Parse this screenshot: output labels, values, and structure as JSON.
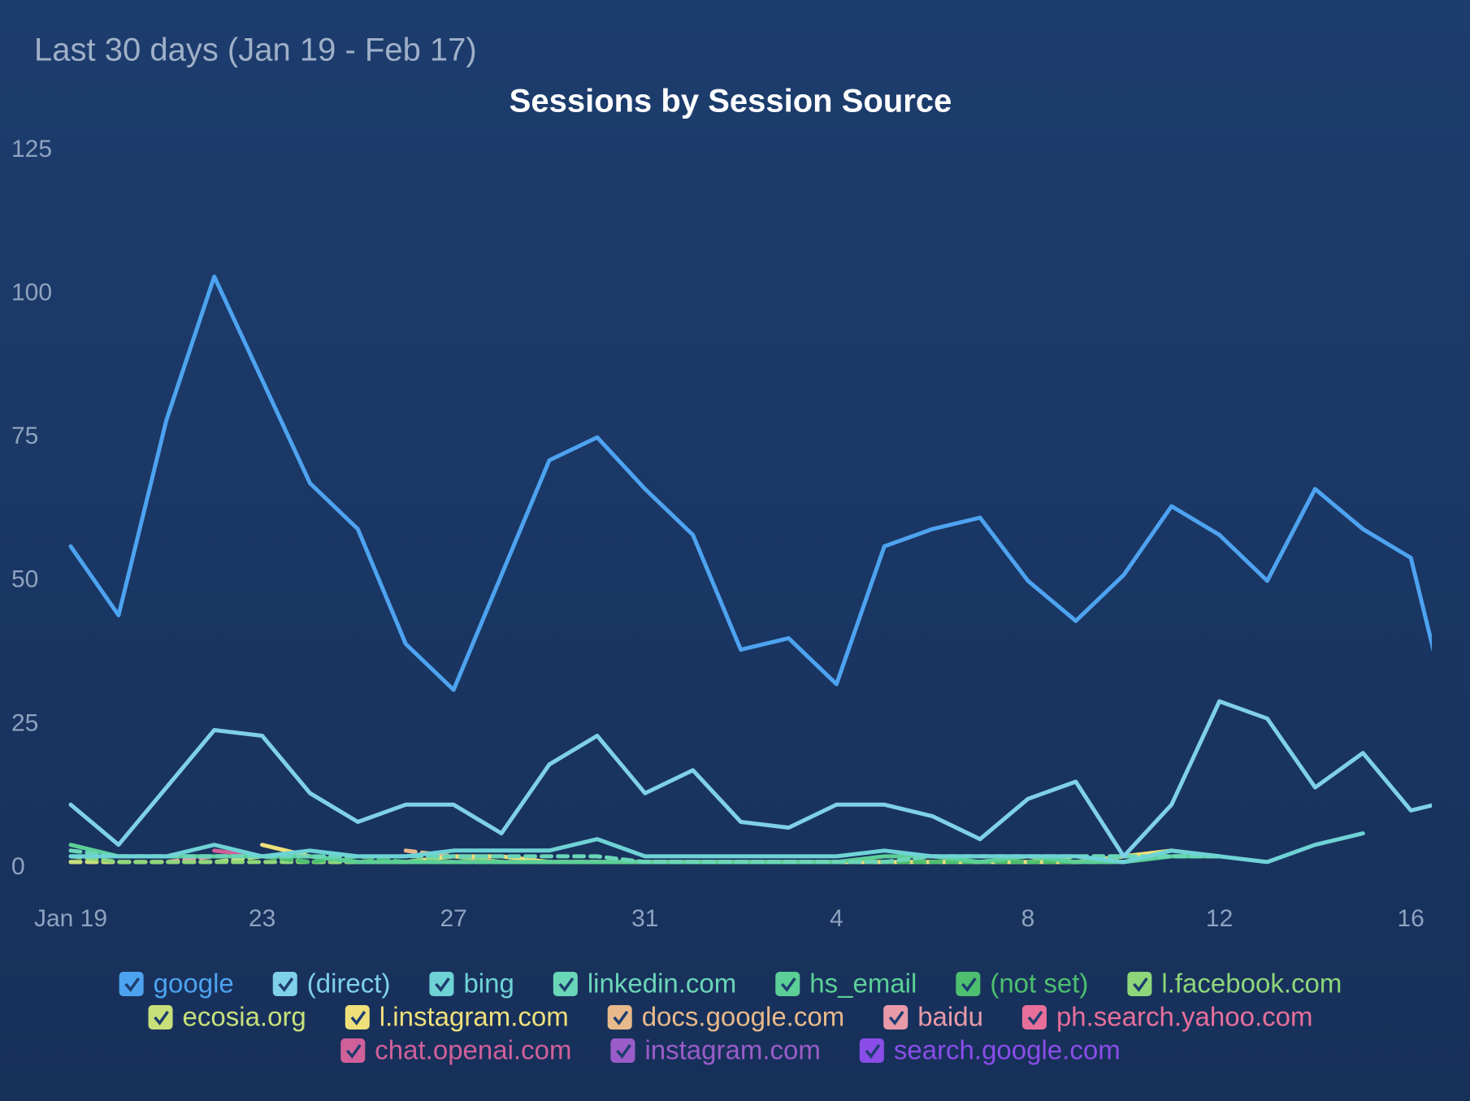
{
  "chart_data": {
    "type": "line",
    "subtitle": "Last 30 days (Jan 19 - Feb 17)",
    "title": "Sessions by Session Source",
    "categories": [
      "Jan 19",
      null,
      null,
      null,
      "23",
      null,
      null,
      null,
      "27",
      null,
      null,
      null,
      "31",
      null,
      null,
      null,
      "4",
      null,
      null,
      null,
      "8",
      null,
      null,
      null,
      "12",
      null,
      null,
      null,
      "16",
      null
    ],
    "ylim": [
      0,
      125
    ],
    "yticks": [
      0,
      25,
      50,
      75,
      100,
      125
    ],
    "grid": false,
    "series": [
      {
        "name": "google",
        "color": "#4da3f0",
        "values": [
          56,
          44,
          78,
          103,
          85,
          67,
          59,
          39,
          31,
          51,
          71,
          75,
          66,
          58,
          38,
          40,
          32,
          56,
          59,
          61,
          50,
          43,
          51,
          63,
          58,
          50,
          66,
          59,
          54,
          20
        ]
      },
      {
        "name": "(direct)",
        "color": "#7fd0ea",
        "values": [
          11,
          4,
          14,
          24,
          23,
          13,
          8,
          11,
          11,
          6,
          18,
          23,
          13,
          17,
          8,
          7,
          11,
          11,
          9,
          5,
          12,
          15,
          2,
          11,
          29,
          26,
          14,
          20,
          10,
          12
        ]
      },
      {
        "name": "bing",
        "color": "#6fd3d6",
        "values": [
          2,
          2,
          2,
          4,
          2,
          3,
          2,
          2,
          3,
          3,
          3,
          5,
          2,
          2,
          2,
          2,
          2,
          3,
          2,
          2,
          2,
          2,
          1,
          3,
          2,
          1,
          4,
          6,
          null,
          null
        ]
      },
      {
        "name": "linkedin.com",
        "color": "#6ad6b8",
        "values": [
          3,
          2,
          2,
          2,
          2,
          2,
          2,
          2,
          2,
          2,
          2,
          2,
          1,
          1,
          1,
          1,
          1,
          1,
          2,
          2,
          2,
          2,
          2,
          2,
          2,
          null,
          null,
          null,
          null,
          null
        ],
        "dash": true
      },
      {
        "name": "hs_email",
        "color": "#5ccf97",
        "values": [
          4,
          2,
          2,
          2,
          2,
          2,
          1,
          1,
          1,
          1,
          1,
          1,
          1,
          1,
          1,
          1,
          1,
          2,
          2,
          1,
          2,
          1,
          1,
          2,
          2,
          null,
          null,
          null,
          null,
          null
        ]
      },
      {
        "name": "(not set)",
        "color": "#4dbf6e",
        "values": [
          2,
          2,
          2,
          2,
          2,
          1,
          2,
          1,
          1,
          1,
          1,
          1,
          1,
          1,
          1,
          1,
          1,
          1,
          1,
          1,
          1,
          1,
          null,
          null,
          null,
          null,
          null,
          null,
          null,
          null
        ],
        "dash": true
      },
      {
        "name": "l.facebook.com",
        "color": "#8fd67a",
        "values": [
          2,
          1,
          1,
          1,
          1,
          1,
          1,
          1,
          2,
          1,
          1,
          1,
          1,
          1,
          1,
          1,
          1,
          1,
          1,
          1,
          2,
          1,
          2,
          2,
          2,
          null,
          null,
          null,
          null,
          null
        ],
        "dash": true
      },
      {
        "name": "ecosia.org",
        "color": "#c7e07a",
        "values": [
          1,
          1,
          1,
          1,
          2,
          1,
          1,
          1,
          1,
          1,
          1,
          1,
          1,
          1,
          1,
          1,
          1,
          1,
          1,
          1,
          1,
          2,
          2,
          2,
          2,
          null,
          null,
          null,
          null,
          null
        ],
        "dash": true
      },
      {
        "name": "l.instagram.com",
        "color": "#efe07a",
        "values": [
          null,
          null,
          null,
          null,
          4,
          2,
          1,
          1,
          2,
          2,
          1,
          1,
          1,
          1,
          1,
          1,
          1,
          1,
          1,
          1,
          1,
          1,
          2,
          3,
          2,
          null,
          null,
          null,
          null,
          null
        ]
      },
      {
        "name": "docs.google.com",
        "color": "#e8b98a",
        "values": [
          null,
          null,
          null,
          null,
          null,
          null,
          null,
          3,
          2,
          1,
          1,
          1,
          1,
          1,
          1,
          1,
          1,
          1,
          1,
          1,
          1,
          1,
          1,
          null,
          null,
          null,
          null,
          null,
          null,
          null
        ],
        "dash": true
      },
      {
        "name": "baidu",
        "color": "#e89aa8",
        "values": [
          1,
          1,
          1,
          2,
          2,
          1,
          1,
          1,
          1,
          1,
          1,
          1,
          1,
          1,
          1,
          1,
          1,
          1,
          2,
          2,
          2,
          2,
          null,
          null,
          null,
          null,
          null,
          null,
          null,
          null
        ],
        "dash": true
      },
      {
        "name": "ph.search.yahoo.com",
        "color": "#e86f9a",
        "values": [
          1,
          1,
          1,
          2,
          2,
          1,
          1,
          1,
          1,
          1,
          1,
          1,
          1,
          1,
          1,
          1,
          1,
          1,
          1,
          1,
          2,
          1,
          null,
          null,
          null,
          null,
          null,
          null,
          null,
          null
        ],
        "dash": true
      },
      {
        "name": "chat.openai.com",
        "color": "#d0609a",
        "values": [
          null,
          null,
          null,
          3,
          2,
          null,
          null,
          null,
          null,
          null,
          null,
          null,
          null,
          null,
          null,
          null,
          null,
          null,
          null,
          null,
          null,
          null,
          null,
          null,
          null,
          null,
          null,
          null,
          null,
          null
        ]
      },
      {
        "name": "instagram.com",
        "color": "#9a5cc8",
        "values": [
          null,
          null,
          null,
          null,
          2,
          null,
          null,
          null,
          null,
          null,
          null,
          null,
          null,
          null,
          null,
          null,
          null,
          null,
          null,
          null,
          null,
          null,
          null,
          null,
          null,
          null,
          null,
          null,
          null,
          null
        ]
      },
      {
        "name": "search.google.com",
        "color": "#8a4de8",
        "values": [
          null,
          null,
          null,
          null,
          null,
          null,
          2,
          null,
          null,
          null,
          null,
          null,
          null,
          null,
          null,
          null,
          null,
          null,
          null,
          null,
          null,
          null,
          null,
          null,
          null,
          null,
          null,
          null,
          null,
          null
        ]
      }
    ]
  }
}
